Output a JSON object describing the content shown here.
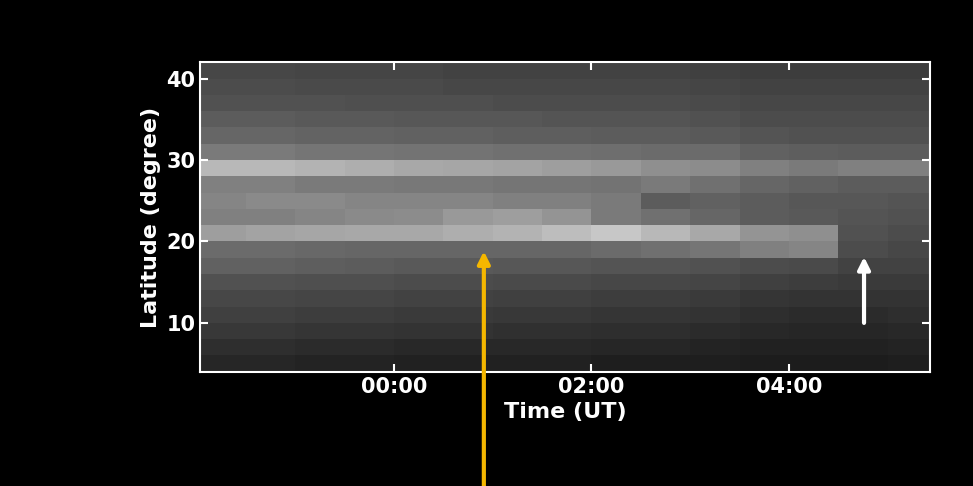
{
  "chart_data": {
    "type": "heatmap",
    "x_label": "Time (UT)",
    "y_label": "Latitude (degree)",
    "x_edges": [
      -1.96,
      -1.5,
      -1.0,
      -0.5,
      0.0,
      0.5,
      1.0,
      1.5,
      2.0,
      2.5,
      3.0,
      3.5,
      4.0,
      4.5,
      5.0,
      5.43
    ],
    "y_edges": [
      4,
      6,
      8,
      10,
      12,
      14,
      16,
      18,
      20,
      22,
      24,
      26,
      28,
      30,
      32,
      34,
      36,
      38,
      40,
      42
    ],
    "cells": [
      [
        15,
        15,
        14,
        14,
        13,
        13,
        13,
        13,
        12,
        12,
        12,
        11,
        11,
        11,
        12
      ],
      [
        18,
        18,
        17,
        17,
        16,
        16,
        16,
        16,
        15,
        15,
        14,
        13,
        13,
        13,
        14
      ],
      [
        22,
        22,
        21,
        21,
        20,
        20,
        19,
        19,
        18,
        18,
        17,
        16,
        15,
        15,
        16
      ],
      [
        25,
        25,
        24,
        24,
        23,
        23,
        22,
        22,
        21,
        21,
        20,
        18,
        17,
        17,
        18
      ],
      [
        28,
        28,
        27,
        27,
        26,
        26,
        25,
        25,
        24,
        24,
        23,
        21,
        20,
        20,
        20
      ],
      [
        32,
        32,
        31,
        31,
        30,
        30,
        29,
        29,
        28,
        28,
        27,
        25,
        24,
        23,
        23
      ],
      [
        38,
        38,
        37,
        36,
        35,
        35,
        34,
        34,
        33,
        33,
        32,
        30,
        29,
        26,
        26
      ],
      [
        42,
        42,
        41,
        40,
        40,
        40,
        40,
        40,
        42,
        44,
        46,
        50,
        52,
        30,
        28
      ],
      [
        62,
        64,
        65,
        66,
        66,
        68,
        70,
        74,
        78,
        72,
        66,
        58,
        56,
        32,
        30
      ],
      [
        50,
        50,
        52,
        54,
        55,
        60,
        62,
        58,
        48,
        44,
        40,
        36,
        35,
        33,
        32
      ],
      [
        52,
        54,
        54,
        52,
        52,
        52,
        50,
        50,
        48,
        36,
        38,
        36,
        34,
        34,
        33
      ],
      [
        50,
        50,
        48,
        48,
        47,
        47,
        46,
        46,
        45,
        48,
        44,
        40,
        38,
        36,
        36
      ],
      [
        72,
        72,
        70,
        68,
        66,
        65,
        64,
        62,
        60,
        56,
        55,
        50,
        48,
        50,
        50
      ],
      [
        48,
        48,
        46,
        46,
        45,
        45,
        44,
        44,
        43,
        42,
        42,
        38,
        37,
        36,
        36
      ],
      [
        40,
        40,
        39,
        39,
        38,
        38,
        37,
        37,
        36,
        36,
        35,
        33,
        32,
        32,
        32
      ],
      [
        36,
        36,
        35,
        35,
        34,
        34,
        34,
        33,
        33,
        33,
        32,
        30,
        30,
        30,
        30
      ],
      [
        32,
        32,
        32,
        31,
        31,
        31,
        30,
        30,
        30,
        30,
        29,
        28,
        28,
        28,
        28
      ],
      [
        30,
        30,
        29,
        29,
        29,
        28,
        28,
        28,
        28,
        28,
        27,
        26,
        26,
        26,
        26
      ],
      [
        28,
        28,
        27,
        27,
        27,
        26,
        26,
        26,
        26,
        26,
        25,
        24,
        24,
        24,
        24
      ]
    ],
    "color_range": [
      0,
      100
    ],
    "xlim": [
      -1.96,
      5.43
    ],
    "ylim": [
      4,
      42
    ],
    "xticks": [
      {
        "value": 0,
        "label": "00:00"
      },
      {
        "value": 2,
        "label": "02:00"
      },
      {
        "value": 4,
        "label": "04:00"
      }
    ],
    "yticks": [
      10,
      20,
      30,
      40
    ],
    "annotations": [
      {
        "x": 0.91,
        "y": 18.8,
        "y_from": -11,
        "color": "#f5b700"
      },
      {
        "x": 4.76,
        "y": 18.1,
        "y_from": 10,
        "color": "#ffffff"
      }
    ]
  }
}
